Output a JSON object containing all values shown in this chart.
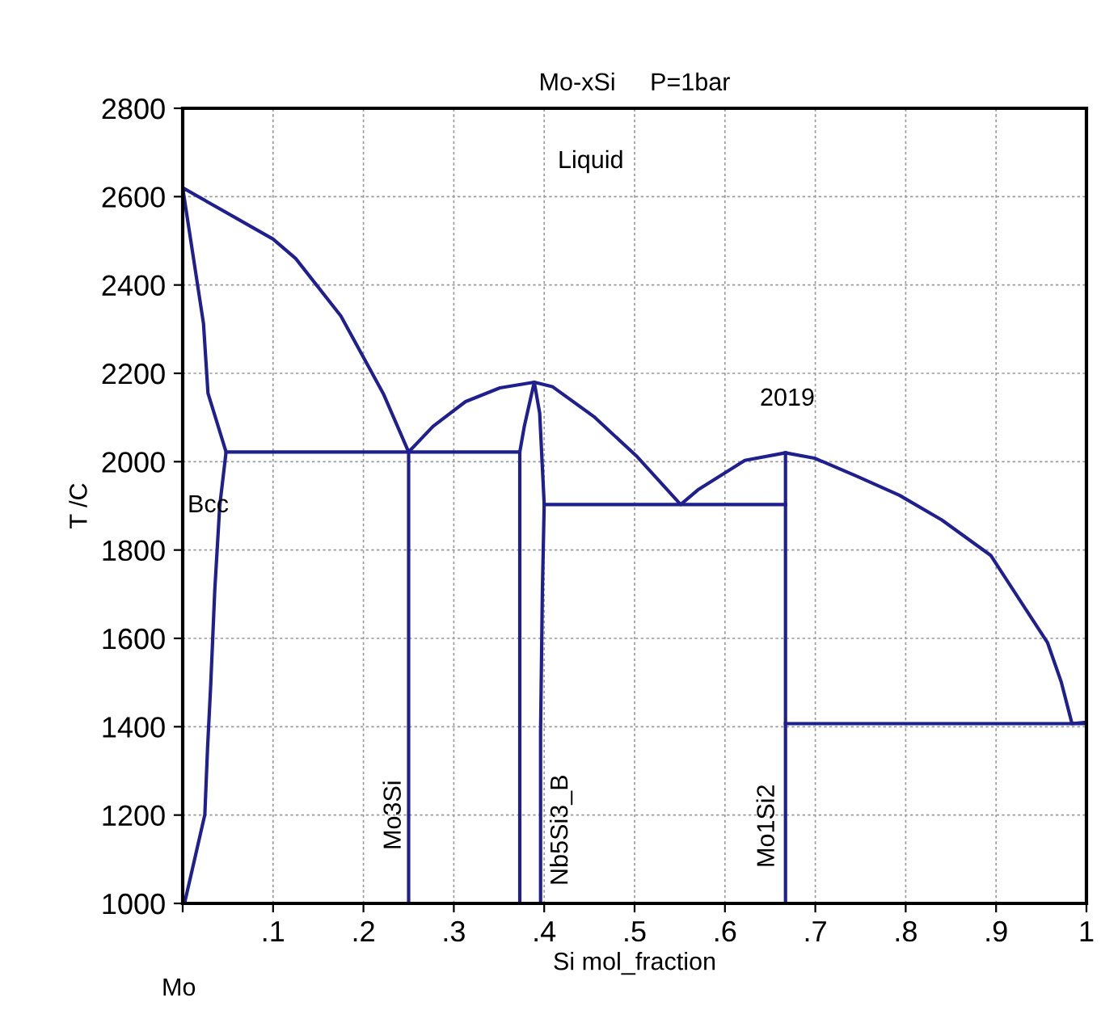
{
  "chart_data": {
    "type": "line",
    "title": "Mo-xSi     P=1bar",
    "xlabel": "Si mol_fraction",
    "ylabel": "T /C",
    "xlim": [
      0,
      1
    ],
    "ylim": [
      1000,
      2800
    ],
    "xticks": [
      {
        "value": 0,
        "label": null
      },
      {
        "value": 0.1,
        "label": ".1"
      },
      {
        "value": 0.2,
        "label": ".2"
      },
      {
        "value": 0.3,
        "label": ".3"
      },
      {
        "value": 0.4,
        "label": ".4"
      },
      {
        "value": 0.5,
        "label": ".5"
      },
      {
        "value": 0.6,
        "label": ".6"
      },
      {
        "value": 0.7,
        "label": ".7"
      },
      {
        "value": 0.8,
        "label": ".8"
      },
      {
        "value": 0.9,
        "label": ".9"
      },
      1
    ],
    "yticks": [
      1000,
      1200,
      1400,
      1600,
      1800,
      2000,
      2200,
      2400,
      2600,
      2800
    ],
    "grid": true,
    "marker": "none",
    "line_style": "solid",
    "series": [
      {
        "color": "#1f1f8f",
        "x": [
          0.002,
          0.0245,
          0.0275,
          0.031,
          0.0355,
          0.041,
          0.048,
          0.028,
          0.023,
          0,
          0.1,
          0.125,
          0.175,
          0.222,
          0.25,
          0.277,
          0.313,
          0.351,
          0.389,
          0.409,
          0.455,
          0.503,
          0.551,
          0.57,
          0.622,
          0.667,
          0.699,
          0.746,
          0.793,
          0.84,
          0.894,
          0.957,
          0.972,
          0.984,
          1.0
        ],
        "values": [
          1000,
          1201,
          1351,
          1494,
          1709,
          1900,
          2022,
          2155,
          2313,
          2620,
          2504,
          2460,
          2330,
          2154,
          2022,
          2080,
          2136,
          2167,
          2180,
          2170,
          2102,
          2011,
          1903,
          1936,
          2003,
          2020,
          2008,
          1967,
          1924,
          1868,
          1788,
          1590,
          1502,
          1407,
          1410
        ]
      },
      {
        "color": "#1f1f8f",
        "x": [
          0.048,
          0.373,
          0.373
        ],
        "values": [
          2022,
          2022,
          1000
        ]
      },
      {
        "color": "#1f1f8f",
        "x": [
          0.25,
          0.25
        ],
        "values": [
          1000,
          2022
        ]
      },
      {
        "color": "#1f1f8f",
        "x": [
          0.373,
          0.378,
          0.389,
          0.395,
          0.4,
          0.398,
          0.396,
          0.396
        ],
        "values": [
          2022,
          2080,
          2180,
          2110,
          1904,
          1709,
          1390,
          1000
        ]
      },
      {
        "color": "#1f1f8f",
        "x": [
          0.4,
          0.667
        ],
        "values": [
          1903,
          1903
        ]
      },
      {
        "color": "#1f1f8f",
        "x": [
          0.667,
          0.667
        ],
        "values": [
          1000,
          2020
        ]
      },
      {
        "color": "#1f1f8f",
        "x": [
          0.667,
          1.0
        ],
        "values": [
          1407,
          1407
        ]
      }
    ],
    "annotations": [
      "Liquid",
      "2019",
      "Bcc",
      "Mo3Si",
      "Nb5Si3_B",
      "Mo1Si2",
      "Mo"
    ]
  }
}
